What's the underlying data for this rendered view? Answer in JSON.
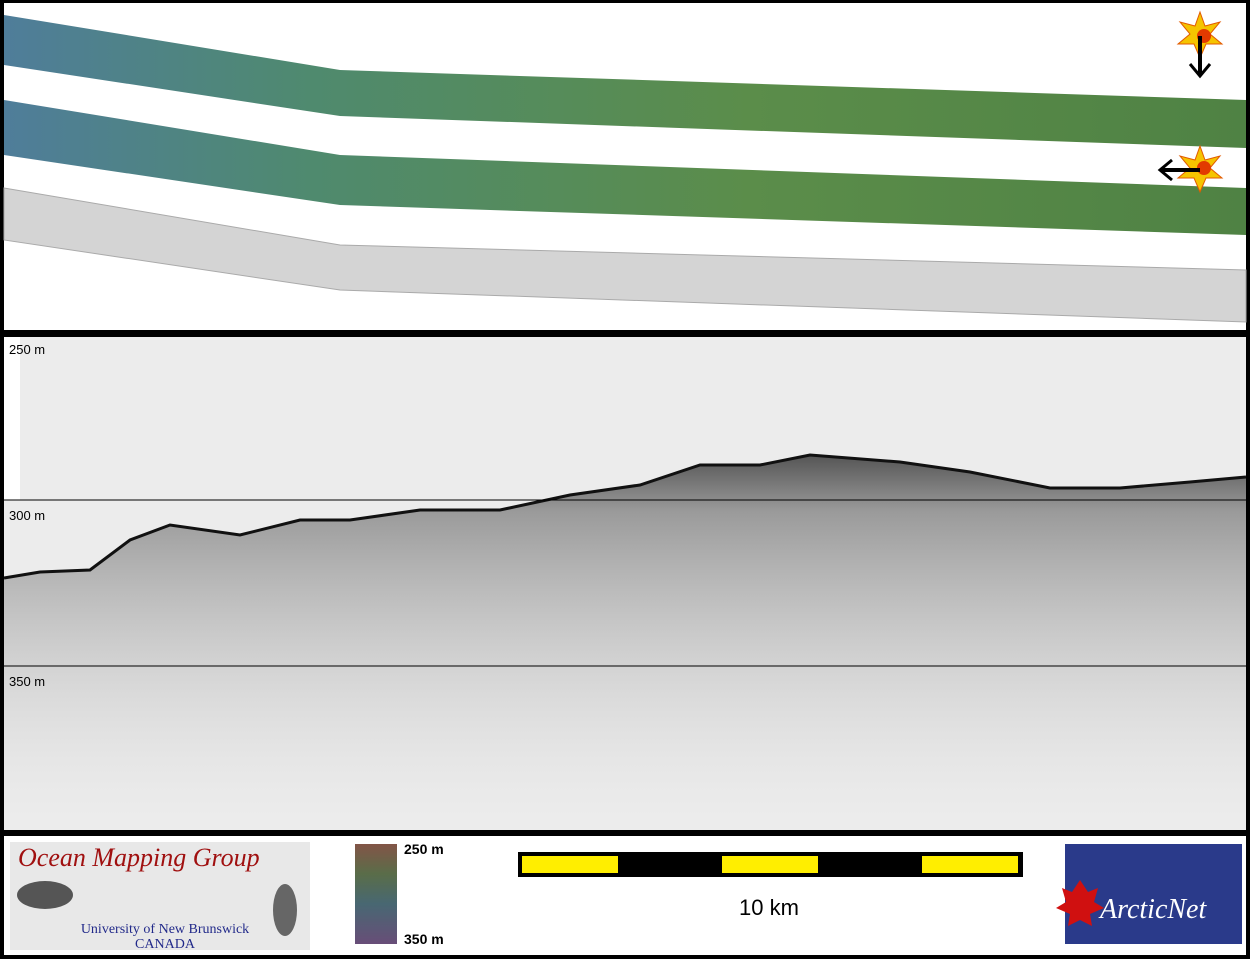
{
  "profile": {
    "depth_labels": [
      "250 m",
      "300 m",
      "350 m"
    ]
  },
  "footer": {
    "logo": {
      "title": "Ocean Mapping Group",
      "institution": "University of New Brunswick",
      "country": "CANADA"
    },
    "color_scale": {
      "top": "250 m",
      "bottom": "350 m"
    },
    "scale_bar": {
      "label": "10 km"
    },
    "partner_logo": {
      "text": "ArcticNet"
    }
  }
}
